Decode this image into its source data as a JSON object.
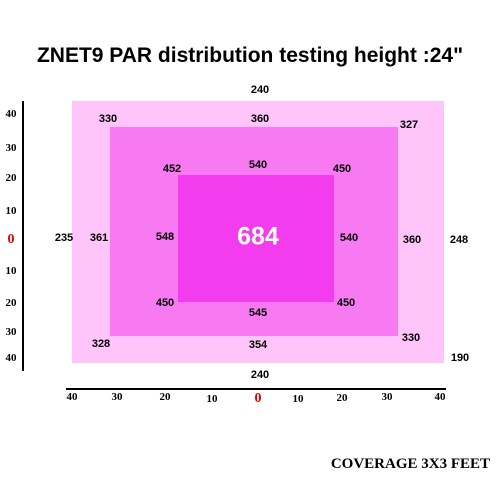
{
  "title": "ZNET9  PAR distribution testing  height :24\"",
  "footer": "COVERAGE  3X3 FEET",
  "colors": {
    "outer_zone": "#ffc4f9",
    "middle_zone": "#f87af3",
    "inner_zone": "#f23cee",
    "zero_tick": "#e00000"
  },
  "outer_ring": {
    "top": "240",
    "left": "235",
    "right_upper": "248",
    "right_lower": "190",
    "bottom": "240"
  },
  "middle_ring": {
    "top_left": "330",
    "top": "360",
    "top_right": "327",
    "left": "361",
    "right": "360",
    "bottom_left": "328",
    "bottom": "354",
    "bottom_right": "330"
  },
  "inner_ring": {
    "top_left": "452",
    "top": "540",
    "top_right": "450",
    "left": "548",
    "right": "540",
    "bottom_left": "450",
    "bottom": "545",
    "bottom_right": "450"
  },
  "center": "684",
  "y_axis_ticks": [
    "40",
    "30",
    "20",
    "10",
    "0",
    "10",
    "20",
    "30",
    "40"
  ],
  "x_axis_ticks": [
    "40",
    "30",
    "20",
    "10",
    "0",
    "10",
    "20",
    "30",
    "40"
  ]
}
